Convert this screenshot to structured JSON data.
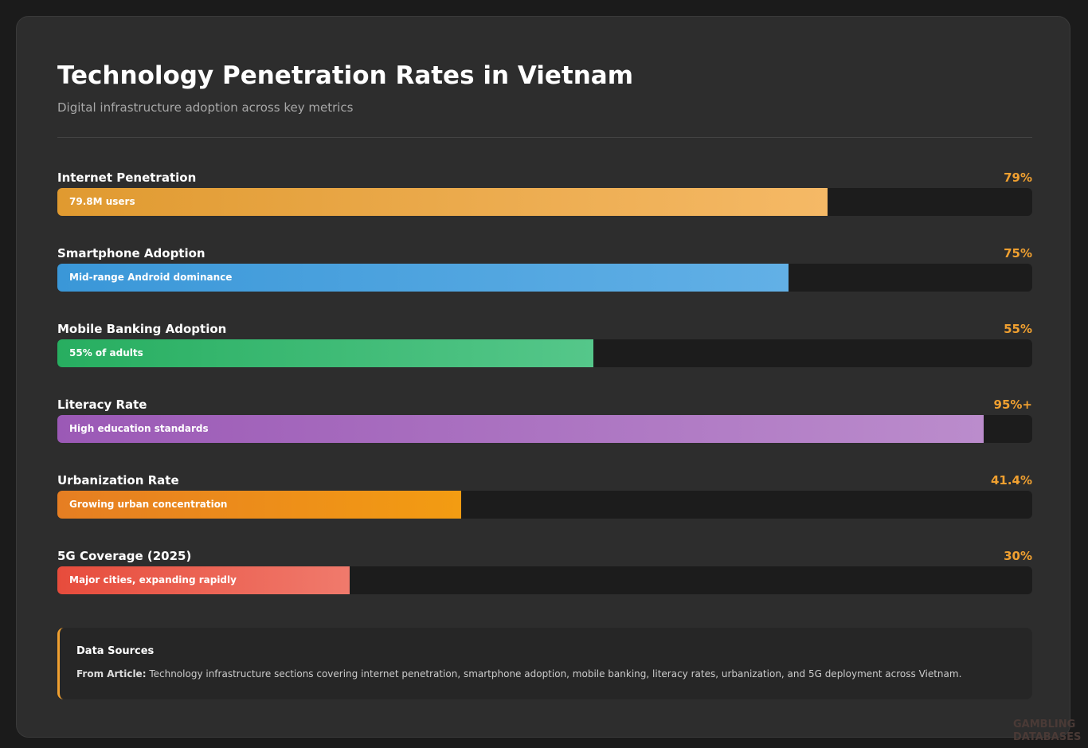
{
  "chart_data": {
    "type": "progress",
    "title": "Technology Penetration Rates in Vietnam",
    "subtitle": "Digital infrastructure adoption across key metrics",
    "categories": [
      "Internet Penetration",
      "Smartphone Adoption",
      "Mobile Banking Adoption",
      "Literacy Rate",
      "Urbanization Rate",
      "5G Coverage (2025)"
    ],
    "values": [
      79,
      75,
      55,
      95,
      41.4,
      30
    ],
    "value_labels": [
      "79%",
      "75%",
      "55%",
      "95%+",
      "41.4%",
      "30%"
    ],
    "annotations": [
      "79.8M users",
      "Mid-range Android dominance",
      "55% of adults",
      "High education standards",
      "Growing urban concentration",
      "Major cities, expanding rapidly"
    ],
    "colors": [
      [
        "#e09a30",
        "#f5b966"
      ],
      [
        "#3a97d8",
        "#62b0e6"
      ],
      [
        "#27ae60",
        "#55c78a"
      ],
      [
        "#9b59b6",
        "#bb8ccc"
      ],
      [
        "#e67e22",
        "#f39c12"
      ],
      [
        "#e74c3c",
        "#f07a6c"
      ]
    ],
    "xlim": [
      0,
      100
    ]
  },
  "sources": {
    "title": "Data Sources",
    "label": "From Article:",
    "text": "Technology infrastructure sections covering internet penetration, smartphone adoption, mobile banking, literacy rates, urbanization, and 5G deployment across Vietnam."
  },
  "watermark": [
    "GAMBLING",
    "DATABASES"
  ]
}
